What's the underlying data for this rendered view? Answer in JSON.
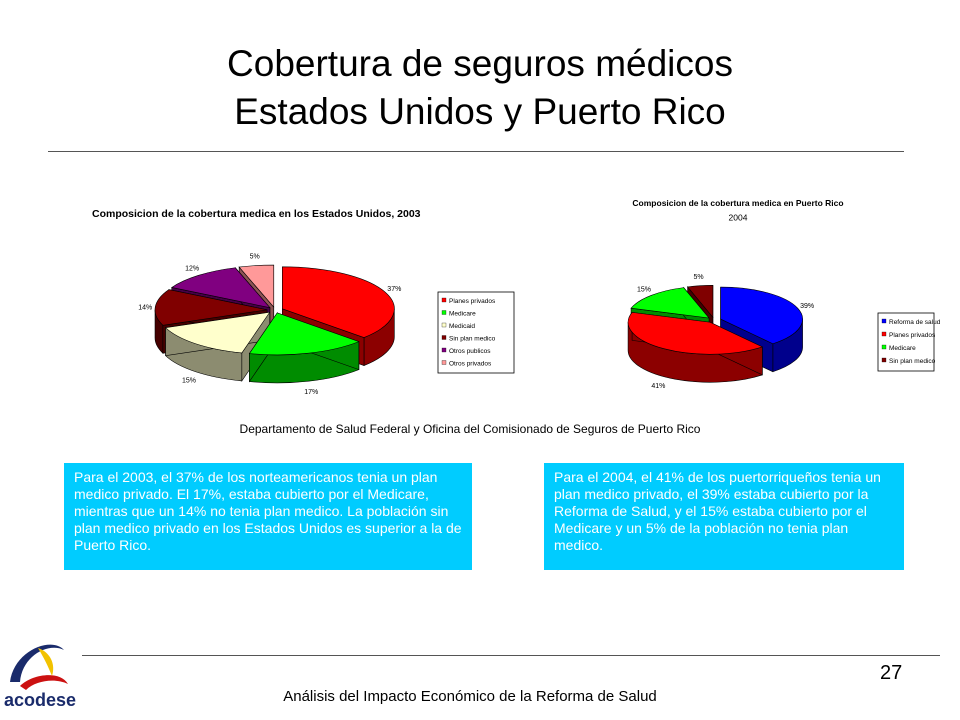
{
  "title": {
    "line1": "Cobertura de seguros médicos",
    "line2": "Estados Unidos y Puerto Rico"
  },
  "chart_data": [
    {
      "type": "pie",
      "title": "Composicion de la cobertura medica en los Estados Unidos, 2003",
      "legend_position": "right",
      "slices": [
        {
          "label": "Planes privados",
          "value": 37,
          "data_label": "37%",
          "color": "#ff0000"
        },
        {
          "label": "Medicare",
          "value": 17,
          "data_label": "17%",
          "color": "#00ff00"
        },
        {
          "label": "Medicaid",
          "value": 15,
          "data_label": "15%",
          "color": "#ffffcc"
        },
        {
          "label": "Sin plan medico",
          "value": 14,
          "data_label": "14%",
          "color": "#800000"
        },
        {
          "label": "Otros publicos",
          "value": 12,
          "data_label": "12%",
          "color": "#800080"
        },
        {
          "label": "Otros privados",
          "value": 5,
          "data_label": "5%",
          "color": "#ff9999"
        }
      ]
    },
    {
      "type": "pie",
      "title": "Composicion de la cobertura medica en Puerto Rico",
      "subtitle": "2004",
      "legend_position": "right",
      "slices": [
        {
          "label": "Reforma de salud",
          "value": 39,
          "data_label": "39%",
          "color": "#0000ff"
        },
        {
          "label": "Planes privados",
          "value": 41,
          "data_label": "41%",
          "color": "#ff0000"
        },
        {
          "label": "Medicare",
          "value": 15,
          "data_label": "15%",
          "color": "#00ff00"
        },
        {
          "label": "Sin plan medico",
          "value": 5,
          "data_label": "5%",
          "color": "#800000"
        }
      ]
    }
  ],
  "source": "Departamento de Salud Federal y Oficina del Comisionado de Seguros de Puerto Rico",
  "notes": {
    "us": "Para el 2003, el 37% de los norteamericanos tenia un plan medico privado. El 17%, estaba cubierto por el Medicare, mientras que un 14% no tenia plan medico. La población sin plan medico privado en los Estados Unidos es superior a la de Puerto Rico.",
    "pr": "Para el 2004, el 41% de los puertorriqueños tenia un plan medico privado, el 39% estaba cubierto por la Reforma de Salud, y el 15% estaba cubierto por el Medicare y un 5% de la población no tenia plan medico."
  },
  "page_number": "27",
  "footer": "Análisis del Impacto Económico de la Reforma de Salud",
  "logo_text": "acodese",
  "colors": {
    "note_box": "#00ccff",
    "logo_blue": "#1a2b6b",
    "logo_red": "#cc1111",
    "logo_yellow": "#f2c200"
  }
}
